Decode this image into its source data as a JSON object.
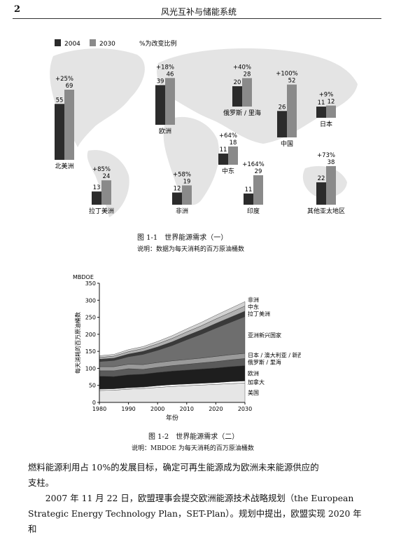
{
  "header": {
    "page_number": "2",
    "running_title": "风光互补与储能系统"
  },
  "figure1": {
    "legend": {
      "y2004": "2004",
      "y2030": "2030",
      "pct": "%为改变比例"
    },
    "regions": [
      {
        "name": "北美洲",
        "v2004": 55,
        "v2030": 69,
        "pct": "+25%"
      },
      {
        "name": "欧洲",
        "v2004": 39,
        "v2030": 46,
        "pct": "+18%"
      },
      {
        "name": "俄罗斯 / 里海",
        "v2004": 20,
        "v2030": 28,
        "pct": "+40%"
      },
      {
        "name": "中国",
        "v2004": 26,
        "v2030": 52,
        "pct": "+100%"
      },
      {
        "name": "日本",
        "v2004": 11,
        "v2030": 12,
        "pct": "+9%"
      },
      {
        "name": "中东",
        "v2004": 11,
        "v2030": 18,
        "pct": "+64%"
      },
      {
        "name": "拉丁美洲",
        "v2004": 13,
        "v2030": 24,
        "pct": "+85%"
      },
      {
        "name": "非洲",
        "v2004": 12,
        "v2030": 19,
        "pct": "+58%"
      },
      {
        "name": "印度",
        "v2004": 11,
        "v2030": 29,
        "pct": "+164%"
      },
      {
        "name": "其他亚太地区",
        "v2004": 22,
        "v2030": 38,
        "pct": "+73%"
      }
    ],
    "colors": {
      "c2004": "#2b2b2b",
      "c2030": "#8a8a8a",
      "map": "#e4e4e4"
    },
    "caption": "图 1-1　世界能源需求（一）",
    "note": "说明：数据为每天消耗的百万原油桶数"
  },
  "chart_data": {
    "type": "area",
    "unit_label": "MBDOE",
    "ylabel": "每天消耗的百万原油桶数",
    "xlabel": "年份",
    "x": [
      1980,
      1985,
      1990,
      1995,
      2000,
      2005,
      2010,
      2015,
      2020,
      2025,
      2030
    ],
    "xticks": [
      "1980",
      "1990",
      "2000",
      "2010",
      "2020",
      "2030"
    ],
    "yticks": [
      "0",
      "50",
      "100",
      "150",
      "200",
      "250",
      "300",
      "350"
    ],
    "ylim": [
      0,
      350
    ],
    "xlim": [
      1980,
      2030
    ],
    "series": [
      {
        "name": "美国",
        "values": [
          35,
          36,
          39,
          41,
          44,
          47,
          49,
          51,
          53,
          55,
          57
        ],
        "color": "#e6e6e6"
      },
      {
        "name": "加拿大",
        "values": [
          4,
          4,
          4,
          4,
          5,
          5,
          5,
          5,
          5,
          6,
          6
        ],
        "color": "#ffffff"
      },
      {
        "name": "欧洲",
        "values": [
          38,
          36,
          38,
          38,
          39,
          40,
          41,
          42,
          43,
          44,
          45
        ],
        "color": "#1e1e1e"
      },
      {
        "name": "俄罗斯 / 里海",
        "values": [
          16,
          17,
          18,
          14,
          15,
          16,
          17,
          18,
          19,
          20,
          21
        ],
        "color": "#5a5a5a"
      },
      {
        "name": "日本 / 澳大利亚 / 新西兰",
        "values": [
          12,
          12,
          13,
          14,
          14,
          14,
          14,
          14,
          15,
          15,
          15
        ],
        "color": "#9a9a9a"
      },
      {
        "name": "亚洲新兴国家",
        "values": [
          15,
          18,
          22,
          30,
          36,
          45,
          58,
          70,
          83,
          95,
          108
        ],
        "color": "#6e6e6e"
      },
      {
        "name": "拉丁美洲",
        "values": [
          7,
          7,
          8,
          9,
          10,
          11,
          12,
          13,
          14,
          15,
          16
        ],
        "color": "#3a3a3a"
      },
      {
        "name": "中东",
        "values": [
          5,
          6,
          7,
          8,
          9,
          10,
          11,
          12,
          13,
          14,
          15
        ],
        "color": "#b0b0b0"
      },
      {
        "name": "非洲",
        "values": [
          5,
          5,
          6,
          6,
          7,
          8,
          9,
          10,
          11,
          12,
          13
        ],
        "color": "#d2d2d2"
      }
    ],
    "caption": "图 1-2　世界能源需求（二）",
    "note": "说明：MBDOE 为每天消耗的百万原油桶数"
  },
  "body": {
    "para1_line1": "燃料能源利用占 10%的发展目标，确定可再生能源成为欧洲未来能源供应的",
    "para1_line2": "支柱。",
    "para2_line1": "　　2007 年 11 月 22 日，欧盟理事会提交欧洲能源技术战略规划（the European",
    "para2_line2": "Strategic Energy Technology Plan，SET-Plan）。规划中提出，欧盟实现 2020 年和"
  }
}
